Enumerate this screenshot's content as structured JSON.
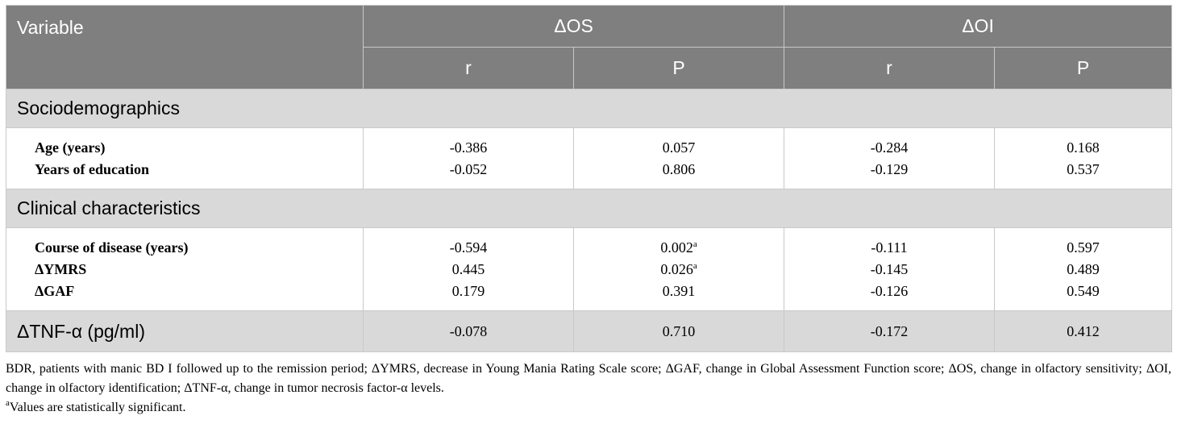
{
  "header": {
    "variable": "Variable",
    "group1": "ΔOS",
    "group2": "ΔOI",
    "r": "r",
    "p": "P"
  },
  "sections": [
    {
      "title": "Sociodemographics",
      "rows": [
        {
          "label": "Age (years)",
          "os_r": "-0.386",
          "os_p": "0.057",
          "os_p_sup": "",
          "oi_r": "-0.284",
          "oi_p": "0.168"
        },
        {
          "label": "Years of education",
          "os_r": "-0.052",
          "os_p": "0.806",
          "os_p_sup": "",
          "oi_r": "-0.129",
          "oi_p": "0.537"
        }
      ]
    },
    {
      "title": "Clinical characteristics",
      "rows": [
        {
          "label": "Course of disease (years)",
          "os_r": "-0.594",
          "os_p": "0.002",
          "os_p_sup": "a",
          "oi_r": "-0.111",
          "oi_p": "0.597"
        },
        {
          "label": "ΔYMRS",
          "os_r": "0.445",
          "os_p": "0.026",
          "os_p_sup": "a",
          "oi_r": "-0.145",
          "oi_p": "0.489"
        },
        {
          "label": "ΔGAF",
          "os_r": "0.179",
          "os_p": "0.391",
          "os_p_sup": "",
          "oi_r": "-0.126",
          "oi_p": "0.549"
        }
      ]
    }
  ],
  "tnf_row": {
    "label": "ΔTNF-α (pg/ml)",
    "os_r": "-0.078",
    "os_p": "0.710",
    "oi_r": "-0.172",
    "oi_p": "0.412"
  },
  "footnote": {
    "abbreviations": "BDR, patients with manic BD I followed up to the remission period; ΔYMRS, decrease in Young Mania Rating Scale score; ΔGAF, change in Global Assessment Function score; ΔOS, change in olfactory sensitivity; ΔOI, change in olfactory identification; ΔTNF-α, change in tumor necrosis factor-α levels.",
    "sig_marker": "a",
    "significance": "Values are statistically significant."
  }
}
